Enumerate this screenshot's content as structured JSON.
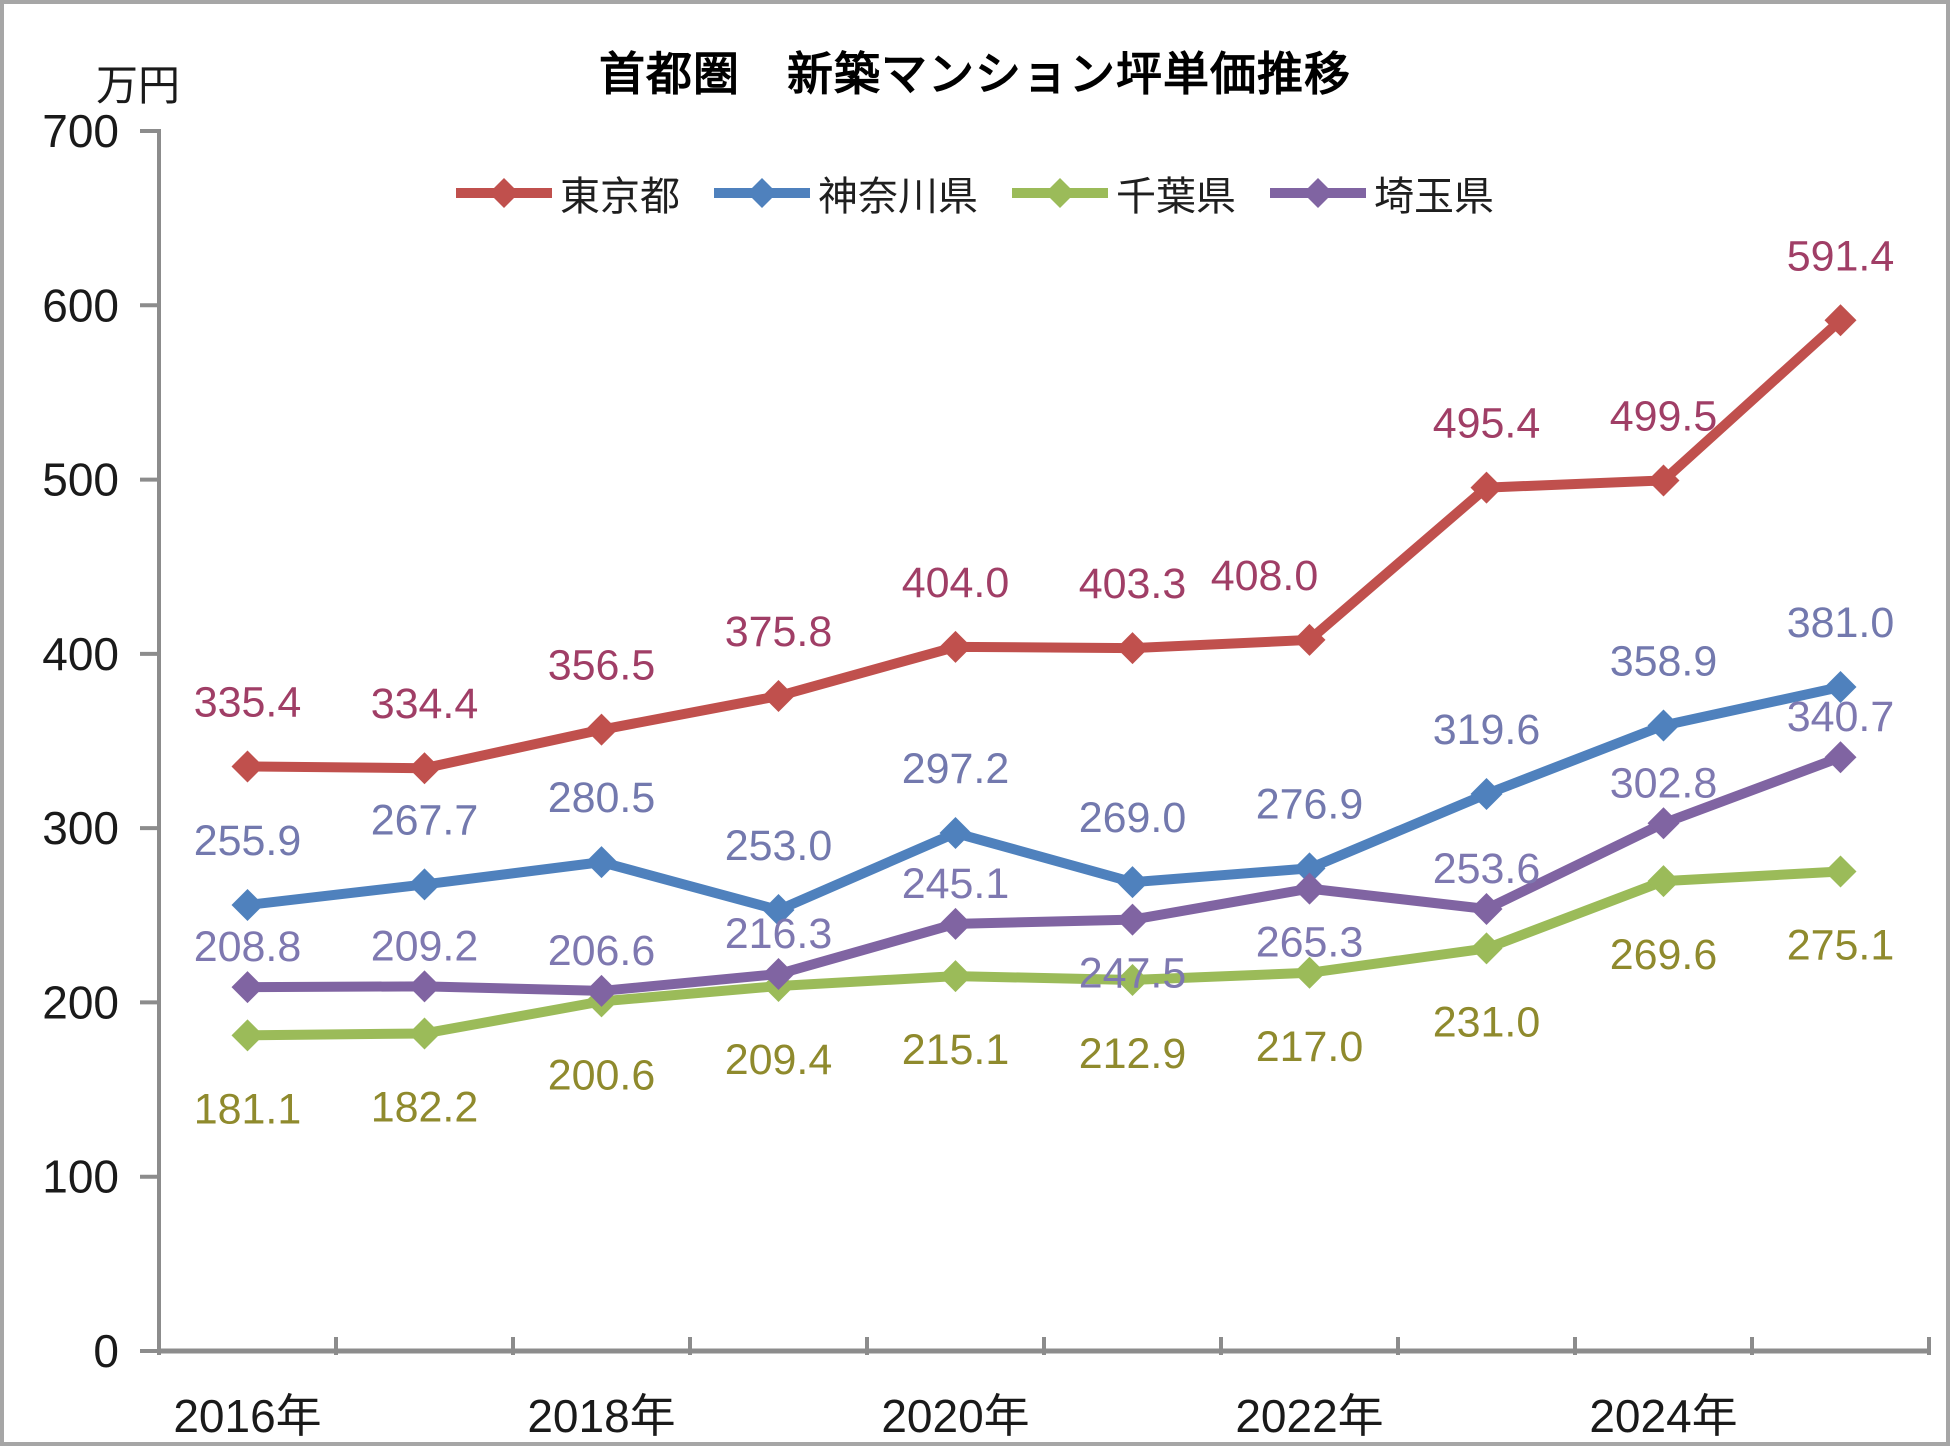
{
  "chart_data": {
    "type": "line",
    "title": "首都圏　新築マンション坪単価推移",
    "unit_label": "万円",
    "ylim": [
      0,
      700
    ],
    "y_tick_step": 100,
    "y_tick_labels": [
      "0",
      "100",
      "200",
      "300",
      "400",
      "500",
      "600",
      "700"
    ],
    "n_points": 10,
    "x_axis_labels": [
      {
        "text": "2016年",
        "index": 0
      },
      {
        "text": "2018年",
        "index": 2
      },
      {
        "text": "2020年",
        "index": 4
      },
      {
        "text": "2022年",
        "index": 6
      },
      {
        "text": "2024年",
        "index": 8
      }
    ],
    "grid": false,
    "legend_position": "top",
    "marker": "diamond",
    "axis_color": "#8C8C8C",
    "tick_label_color": "#1a1a1a",
    "series": [
      {
        "name": "東京都",
        "color": "#C0504D",
        "label_color": "#A03E66",
        "label_side": "above",
        "label_side_overrides": {},
        "values": [
          335.4,
          334.4,
          356.5,
          375.8,
          404.0,
          403.3,
          408.0,
          495.4,
          499.5,
          591.4
        ]
      },
      {
        "name": "神奈川県",
        "color": "#4F81BD",
        "label_color": "#7379AE",
        "label_side": "above",
        "label_side_overrides": {},
        "values": [
          255.9,
          267.7,
          280.5,
          253.0,
          297.2,
          269.0,
          276.9,
          319.6,
          358.9,
          381.0
        ]
      },
      {
        "name": "千葉県",
        "color": "#9BBB59",
        "label_color": "#8F8A2D",
        "label_side": "below",
        "label_side_overrides": {},
        "values": [
          181.1,
          182.2,
          200.6,
          209.4,
          215.1,
          212.9,
          217.0,
          231.0,
          269.6,
          275.1
        ]
      },
      {
        "name": "埼玉県",
        "color": "#8064A2",
        "label_color": "#7E78B0",
        "label_side": "above",
        "label_side_overrides": {
          "5": "below",
          "6": "below"
        },
        "values": [
          208.8,
          209.2,
          206.6,
          216.3,
          245.1,
          247.5,
          265.3,
          253.6,
          302.8,
          340.7
        ]
      }
    ]
  }
}
